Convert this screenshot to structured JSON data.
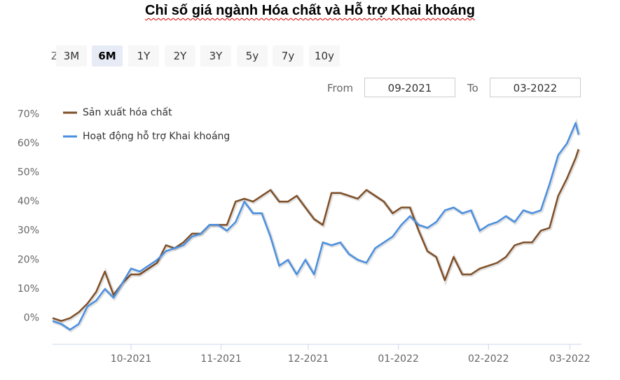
{
  "title": "Chỉ số giá ngành Hóa chất và Hỗ trợ Khai khoáng",
  "range_selector": {
    "zoom_label": "Z",
    "buttons": [
      {
        "label": "3M",
        "selected": false
      },
      {
        "label": "6M",
        "selected": true
      },
      {
        "label": "1Y",
        "selected": false
      },
      {
        "label": "2Y",
        "selected": false
      },
      {
        "label": "3Y",
        "selected": false
      },
      {
        "label": "5y",
        "selected": false
      },
      {
        "label": "7y",
        "selected": false
      },
      {
        "label": "10y",
        "selected": false
      }
    ]
  },
  "date_range": {
    "from_label": "From",
    "from": "09-2021",
    "to_label": "To",
    "to": "03-2022"
  },
  "chart_data": {
    "type": "line",
    "legend": "top-left",
    "grid": false,
    "x": [
      0,
      3,
      6,
      9,
      12,
      15,
      18,
      21,
      24,
      27,
      30,
      33,
      36,
      39,
      42,
      45,
      48,
      51,
      54,
      57,
      60,
      63,
      66,
      69,
      72,
      75,
      78,
      81,
      84,
      87,
      90,
      93,
      96,
      99,
      102,
      105,
      108,
      111,
      114,
      117,
      120,
      123,
      126,
      129,
      132,
      135,
      138,
      141,
      144,
      147,
      150,
      153,
      156,
      159,
      162,
      165,
      168,
      171,
      174,
      177,
      180,
      181
    ],
    "series": [
      {
        "name": "Sản xuất hóa chất",
        "color": "#7f4f27",
        "values": [
          0,
          -1,
          0,
          2,
          5,
          9,
          16,
          8,
          12,
          15,
          15,
          17,
          19,
          25,
          24,
          26,
          29,
          29,
          32,
          32,
          32,
          40,
          41,
          40,
          42,
          44,
          40,
          40,
          42,
          38,
          34,
          32,
          43,
          43,
          42,
          41,
          44,
          42,
          40,
          36,
          38,
          38,
          30,
          23,
          21,
          13,
          21,
          15,
          15,
          17,
          18,
          19,
          21,
          25,
          26,
          26,
          30,
          31,
          42,
          48,
          55,
          58
        ]
      },
      {
        "name": "Hoạt động hỗ trợ Khai khoáng",
        "color": "#4a8fe0",
        "values": [
          -1,
          -2,
          -4,
          -2,
          4,
          6,
          10,
          7,
          12,
          17,
          16,
          18,
          20,
          23,
          24,
          25,
          28,
          29,
          32,
          32,
          30,
          33,
          40,
          36,
          36,
          28,
          18,
          20,
          15,
          20,
          15,
          26,
          25,
          26,
          22,
          20,
          19,
          24,
          26,
          28,
          32,
          35,
          32,
          31,
          33,
          37,
          38,
          36,
          37,
          30,
          32,
          33,
          35,
          33,
          37,
          36,
          37,
          46,
          56,
          60,
          67,
          63
        ]
      }
    ],
    "xlim": [
      0,
      182
    ],
    "xticks": [
      {
        "value": 27,
        "label": "10-2021"
      },
      {
        "value": 58,
        "label": "11-2021"
      },
      {
        "value": 88,
        "label": "12-2021"
      },
      {
        "value": 119,
        "label": "01-2022"
      },
      {
        "value": 150,
        "label": "02-2022"
      },
      {
        "value": 178,
        "label": "03-2022"
      }
    ],
    "ylim": [
      -9,
      72
    ],
    "yticks": [
      {
        "value": 0,
        "label": "0%"
      },
      {
        "value": 10,
        "label": "10%"
      },
      {
        "value": 20,
        "label": "20%"
      },
      {
        "value": 30,
        "label": "30%"
      },
      {
        "value": 40,
        "label": "40%"
      },
      {
        "value": 50,
        "label": "50%"
      },
      {
        "value": 60,
        "label": "60%"
      },
      {
        "value": 70,
        "label": "70%"
      }
    ]
  }
}
